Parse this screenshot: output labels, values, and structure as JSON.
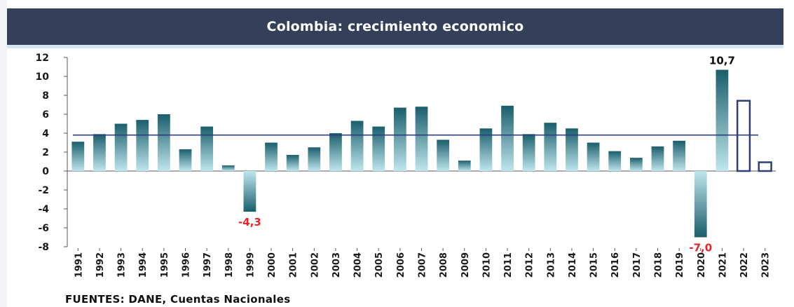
{
  "title": "Colombia: crecimiento economico",
  "source": "FUENTES: DANE, Cuentas Nacionales",
  "colors": {
    "header_bg": "#34405a",
    "bar_top": "#1a5e6c",
    "bar_bottom": "#bfe6ee",
    "reference_line": "#2c3d79",
    "projection_outline": "#2d3f75",
    "negative_label": "#e8232a",
    "positive_label": "#111111"
  },
  "chart_data": {
    "type": "bar",
    "title": "Colombia: crecimiento economico",
    "xlabel": "",
    "ylabel": "",
    "ylim": [
      -8,
      12
    ],
    "yticks": [
      12,
      10,
      8,
      6,
      4,
      2,
      0,
      -2,
      -4,
      -6,
      -8
    ],
    "grid": false,
    "categories": [
      "1991",
      "1992",
      "1993",
      "1994",
      "1995",
      "1996",
      "1997",
      "1998",
      "1999",
      "2000",
      "2001",
      "2002",
      "2003",
      "2004",
      "2005",
      "2006",
      "2007",
      "2008",
      "2009",
      "2010",
      "2011",
      "2012",
      "2013",
      "2014",
      "2015",
      "2016",
      "2017",
      "2018",
      "2019",
      "2020",
      "2021",
      "2022",
      "2023"
    ],
    "values": [
      3.1,
      3.9,
      5.0,
      5.4,
      6.0,
      2.3,
      4.7,
      0.6,
      -4.3,
      3.0,
      1.7,
      2.5,
      4.0,
      5.3,
      4.7,
      6.7,
      6.8,
      3.3,
      1.1,
      4.5,
      6.9,
      3.9,
      5.1,
      4.5,
      3.0,
      2.1,
      1.4,
      2.6,
      3.2,
      -7.0,
      10.7,
      7.5,
      1.0
    ],
    "projected": [
      "2022",
      "2023"
    ],
    "reference_line": {
      "value": 3.8
    },
    "data_labels": [
      {
        "category": "1999",
        "text": "-4,3"
      },
      {
        "category": "2020",
        "text": "-7,0"
      },
      {
        "category": "2021",
        "text": "10,7"
      }
    ]
  }
}
